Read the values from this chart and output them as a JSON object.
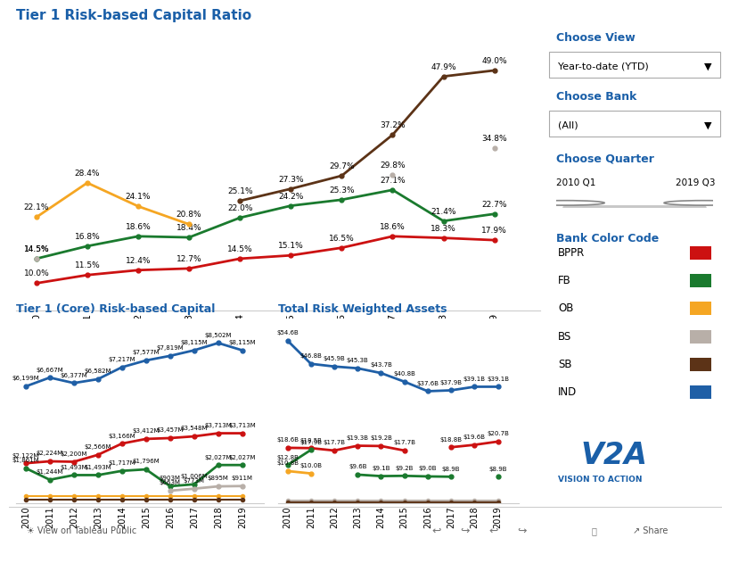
{
  "years": [
    2010,
    2011,
    2012,
    2013,
    2014,
    2015,
    2016,
    2017,
    2018,
    2019
  ],
  "colors": {
    "BPPR": "#cc1111",
    "FB": "#1a7a2e",
    "OB": "#f5a623",
    "BS": "#b8afa8",
    "SB": "#5c3317",
    "IND": "#1f5fa6"
  },
  "title1": "Tier 1 Risk-based Capital Ratio",
  "title2": "Tier 1 (Core) Risk-based Capital",
  "title3": "Total Risk Weighted Assets",
  "ratio": {
    "BPPR": [
      10.0,
      11.5,
      12.4,
      12.7,
      14.5,
      15.1,
      16.5,
      18.6,
      18.3,
      17.9
    ],
    "FB": [
      14.5,
      16.8,
      18.6,
      18.4,
      22.0,
      24.2,
      25.3,
      27.1,
      21.4,
      22.7
    ],
    "OB": [
      22.1,
      28.4,
      24.1,
      20.8,
      null,
      null,
      null,
      null,
      null,
      null
    ],
    "BS": [
      14.5,
      null,
      null,
      null,
      null,
      null,
      null,
      29.8,
      null,
      34.8
    ],
    "SB": [
      null,
      null,
      null,
      null,
      25.1,
      27.3,
      29.7,
      37.2,
      47.9,
      49.0
    ],
    "IND": [
      null,
      null,
      null,
      null,
      null,
      null,
      null,
      null,
      null,
      null
    ]
  },
  "ratio_labels": {
    "BPPR": [
      "10.0%",
      "11.5%",
      "12.4%",
      "12.7%",
      "14.5%",
      "15.1%",
      "16.5%",
      "18.6%",
      "18.3%",
      "17.9%"
    ],
    "FB": [
      "14.5%",
      "16.8%",
      "18.6%",
      "18.4%",
      "22.0%",
      "24.2%",
      "25.3%",
      "27.1%",
      "21.4%",
      "22.7%"
    ],
    "OB": [
      "22.1%",
      "28.4%",
      "24.1%",
      "20.8%",
      null,
      null,
      null,
      null,
      null,
      null
    ],
    "BS": [
      "14.5%",
      null,
      null,
      null,
      null,
      null,
      null,
      "29.8%",
      null,
      "34.8%"
    ],
    "SB": [
      null,
      null,
      null,
      null,
      "25.1%",
      "27.3%",
      "29.7%",
      "37.2%",
      "47.9%",
      "49.0%"
    ],
    "IND": [
      null,
      null,
      null,
      null,
      null,
      null,
      null,
      null,
      null,
      null
    ]
  },
  "tier1": {
    "IND": [
      6199,
      6667,
      6377,
      6582,
      7217,
      7577,
      7819,
      8115,
      8502,
      8115
    ],
    "BPPR": [
      2122,
      2224,
      2200,
      2566,
      3166,
      3412,
      3457,
      3548,
      3713,
      3713
    ],
    "FB": [
      1861,
      1244,
      1493,
      1493,
      1717,
      1796,
      903,
      1006,
      2027,
      2027
    ],
    "BS": [
      null,
      null,
      null,
      null,
      null,
      null,
      663,
      773,
      895,
      911
    ],
    "OB": [
      null,
      null,
      null,
      null,
      null,
      null,
      null,
      null,
      null,
      null
    ],
    "SB": [
      null,
      null,
      null,
      null,
      null,
      null,
      null,
      null,
      null,
      null
    ]
  },
  "tier1_labels": {
    "IND": [
      "$6,199M",
      "$6,667M",
      "$6,377M",
      "$6,582M",
      "$7,217M",
      "$7,577M",
      "$7,819M",
      "$8,115M",
      "$8,502M",
      "$8,115M"
    ],
    "BPPR": [
      "$2,122M",
      "$2,224M",
      "$2,200M",
      "$2,566M",
      "$3,166M",
      "$3,412M",
      "$3,457M",
      "$3,548M",
      "$3,713M",
      "$3,713M"
    ],
    "FB": [
      "$1,861M",
      "$1,244M",
      "$1,493M",
      "$1,493M",
      "$1,717M",
      "$1,796M",
      "$903M",
      "$1,006M",
      "$2,027M",
      "$2,027M"
    ],
    "BS": [
      null,
      null,
      null,
      null,
      null,
      null,
      "$663M",
      "$773M",
      "$895M",
      "$911M"
    ],
    "OB": [
      null,
      null,
      null,
      null,
      null,
      null,
      null,
      null,
      null,
      null
    ],
    "SB": [
      null,
      null,
      null,
      null,
      null,
      null,
      null,
      null,
      null,
      null
    ]
  },
  "tier1_flat": {
    "OB": 380,
    "SB": 200
  },
  "trwa": {
    "IND": [
      54.6,
      46.8,
      45.9,
      45.3,
      43.7,
      40.8,
      37.6,
      37.9,
      39.1,
      39.1
    ],
    "BPPR": [
      18.6,
      18.5,
      17.7,
      19.3,
      19.2,
      17.7,
      null,
      18.8,
      19.6,
      20.7
    ],
    "FB": [
      12.8,
      17.9,
      null,
      9.6,
      9.1,
      9.2,
      9.0,
      8.9,
      null,
      8.9
    ],
    "OB": [
      10.8,
      10.0,
      null,
      null,
      null,
      null,
      null,
      null,
      null,
      null
    ],
    "BS": [
      null,
      null,
      null,
      null,
      null,
      null,
      null,
      null,
      null,
      null
    ],
    "SB": [
      null,
      null,
      null,
      null,
      null,
      null,
      null,
      null,
      null,
      null
    ]
  },
  "trwa_labels": {
    "IND": [
      "$54.6B",
      "$46.8B",
      "$45.9B",
      "$45.3B",
      "$43.7B",
      "$40.8B",
      "$37.6B",
      "$37.9B",
      "$39.1B",
      "$39.1B"
    ],
    "BPPR": [
      "$18.6B",
      "$18.5B",
      "$17.7B",
      "$19.3B",
      "$19.2B",
      "$17.7B",
      null,
      "$18.8B",
      "$19.6B",
      "$20.7B"
    ],
    "FB": [
      "$12.8B",
      "$17.9B",
      null,
      "$9.6B",
      "$9.1B",
      "$9.2B",
      "$9.0B",
      "$8.9B",
      null,
      "$8.9B"
    ],
    "OB": [
      "$10.8B",
      "$10.0B",
      null,
      null,
      null,
      null,
      null,
      null,
      null,
      null
    ],
    "BS": [
      null,
      null,
      null,
      null,
      null,
      null,
      null,
      null,
      null,
      null
    ],
    "SB": [
      null,
      null,
      null,
      null,
      null,
      null,
      null,
      null,
      null,
      null
    ]
  },
  "trwa_flat": {
    "BS": 0.8,
    "SB": 0.3,
    "OB_extra": 1.5
  },
  "sidebar_title1": "Choose View",
  "sidebar_dd1": "Year-to-date (YTD)",
  "sidebar_title2": "Choose Bank",
  "sidebar_dd2": "(All)",
  "sidebar_title3": "Choose Quarter",
  "sidebar_q1": "2010 Q1",
  "sidebar_q2": "2019 Q3",
  "legend_items": [
    "BPPR",
    "FB",
    "OB",
    "BS",
    "SB",
    "IND"
  ],
  "bg_color": "#ffffff",
  "title_color": "#1a5fa8",
  "sidebar_title_color": "#1a5fa8",
  "bottom_bar_color": "#f0f0f0"
}
